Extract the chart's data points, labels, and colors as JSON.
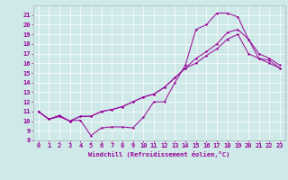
{
  "xlabel": "Windchill (Refroidissement éolien,°C)",
  "bg_color": "#cfe8e8",
  "line_color": "#990099",
  "xlim": [
    -0.5,
    23.5
  ],
  "ylim": [
    8,
    22
  ],
  "yticks": [
    8,
    9,
    10,
    11,
    12,
    13,
    14,
    15,
    16,
    17,
    18,
    19,
    20,
    21
  ],
  "xticks": [
    0,
    1,
    2,
    3,
    4,
    5,
    6,
    7,
    8,
    9,
    10,
    11,
    12,
    13,
    14,
    15,
    16,
    17,
    18,
    19,
    20,
    21,
    22,
    23
  ],
  "series": [
    {
      "x": [
        0,
        1,
        2,
        3,
        4,
        5,
        6,
        7,
        8,
        9,
        10,
        11,
        12,
        13,
        14,
        15,
        16,
        17,
        18,
        19,
        20,
        21,
        22,
        23
      ],
      "y": [
        11,
        10.2,
        10.6,
        10.0,
        10.1,
        8.5,
        9.3,
        9.4,
        9.4,
        9.3,
        10.4,
        12.0,
        12.0,
        14.0,
        15.8,
        19.5,
        20.0,
        21.2,
        21.2,
        20.8,
        18.5,
        16.5,
        16.3,
        15.5
      ]
    },
    {
      "x": [
        0,
        1,
        2,
        3,
        4,
        5,
        6,
        7,
        8,
        9,
        10,
        11,
        12,
        13,
        14,
        15,
        16,
        17,
        18,
        19,
        20,
        21,
        22,
        23
      ],
      "y": [
        11,
        10.2,
        10.5,
        10.0,
        10.5,
        10.5,
        11.0,
        11.2,
        11.5,
        12.0,
        12.5,
        12.8,
        13.5,
        14.5,
        15.5,
        16.5,
        17.2,
        18.0,
        19.2,
        19.5,
        18.5,
        17.0,
        16.5,
        15.8
      ]
    },
    {
      "x": [
        0,
        1,
        2,
        3,
        4,
        5,
        6,
        7,
        8,
        9,
        10,
        11,
        12,
        13,
        14,
        15,
        16,
        17,
        18,
        19,
        20,
        21,
        22,
        23
      ],
      "y": [
        11,
        10.2,
        10.5,
        10.0,
        10.5,
        10.5,
        11.0,
        11.2,
        11.5,
        12.0,
        12.5,
        12.8,
        13.5,
        14.5,
        15.5,
        16.0,
        16.8,
        17.5,
        18.5,
        19.0,
        17.0,
        16.5,
        16.0,
        15.5
      ]
    }
  ]
}
